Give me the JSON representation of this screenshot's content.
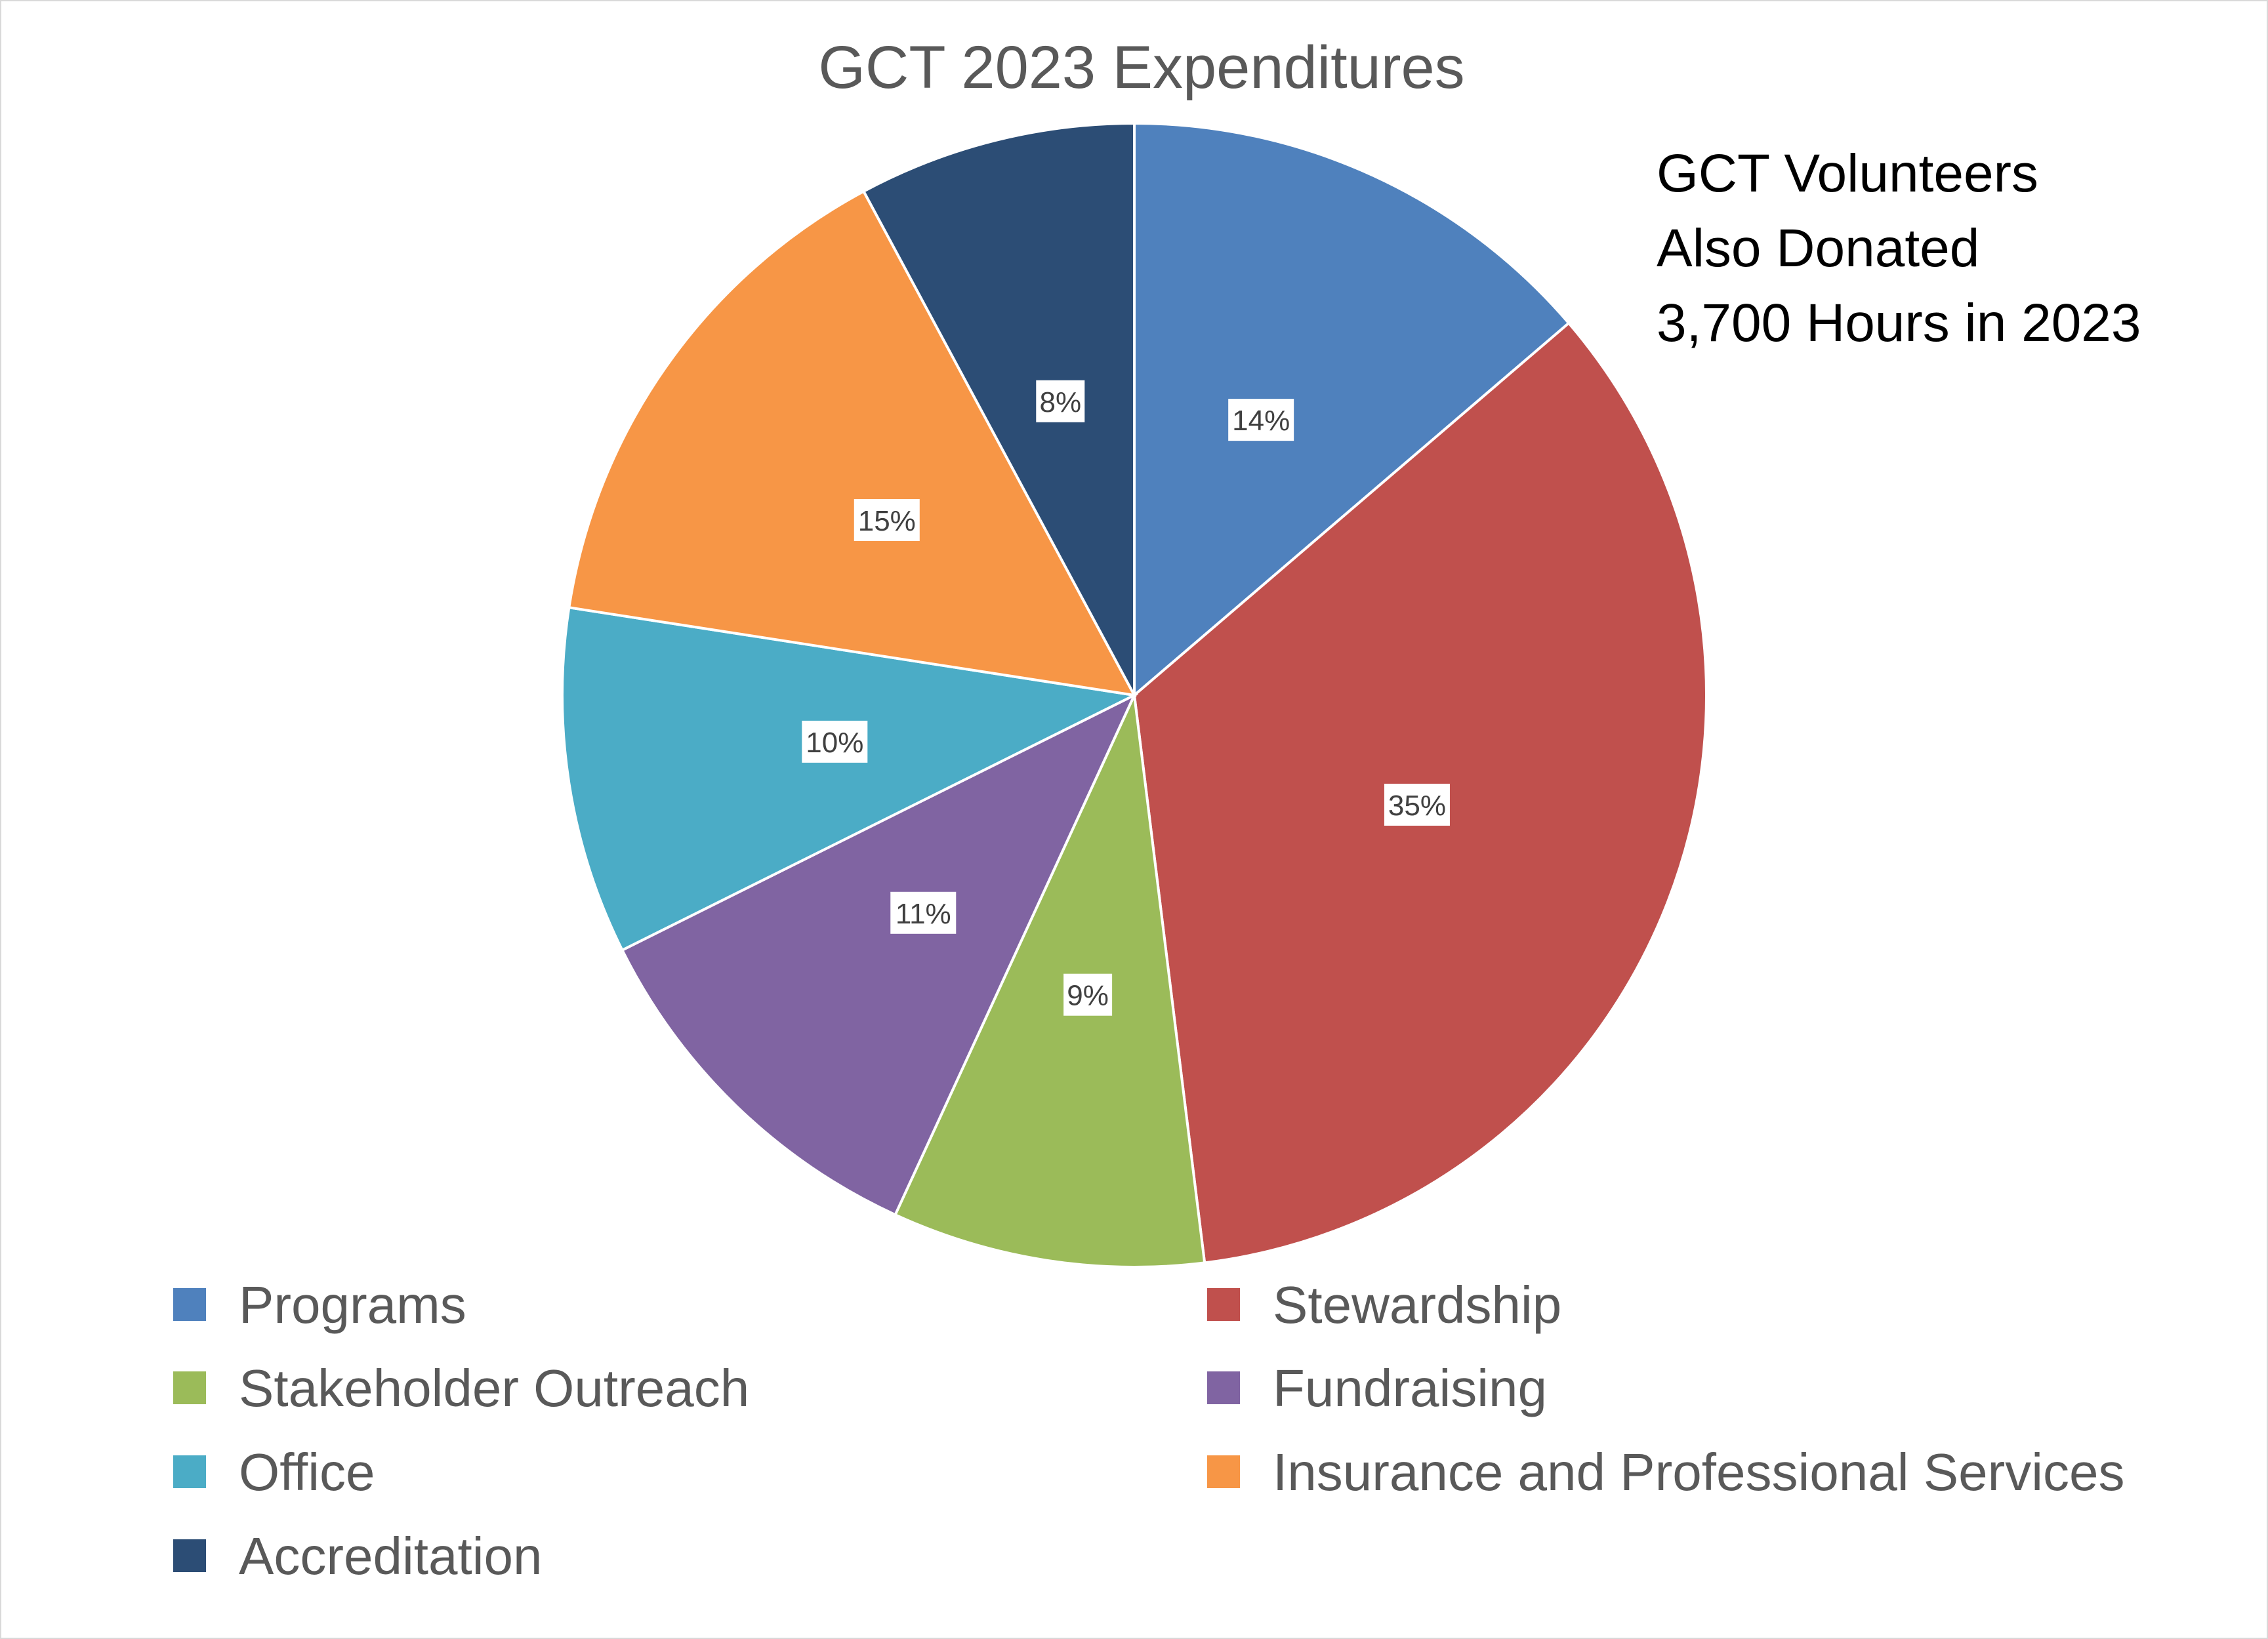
{
  "chart_data": {
    "type": "pie",
    "title": "GCT 2023 Expenditures",
    "slices": [
      {
        "label": "Programs",
        "value": 14,
        "display": "14%",
        "color": "#4f81bd"
      },
      {
        "label": "Stewardship",
        "value": 35,
        "display": "35%",
        "color": "#c0504d"
      },
      {
        "label": "Stakeholder Outreach",
        "value": 9,
        "display": "9%",
        "color": "#9bbb59"
      },
      {
        "label": "Fundraising",
        "value": 11,
        "display": "11%",
        "color": "#8064a2"
      },
      {
        "label": "Office",
        "value": 10,
        "display": "10%",
        "color": "#4bacc6"
      },
      {
        "label": "Insurance and Professional Services",
        "value": 15,
        "display": "15%",
        "color": "#f79646"
      },
      {
        "label": "Accreditation",
        "value": 8,
        "display": "8%",
        "color": "#2c4d75"
      }
    ],
    "legend_order": [
      "Programs",
      "Stewardship",
      "Stakeholder Outreach",
      "Fundraising",
      "Office",
      "Insurance and Professional Services",
      "Accreditation"
    ],
    "legend_position": "bottom",
    "start": "12 o'clock, clockwise"
  },
  "annotation": {
    "lines": [
      "GCT Volunteers",
      "Also Donated",
      "3,700 Hours in 2023"
    ]
  }
}
